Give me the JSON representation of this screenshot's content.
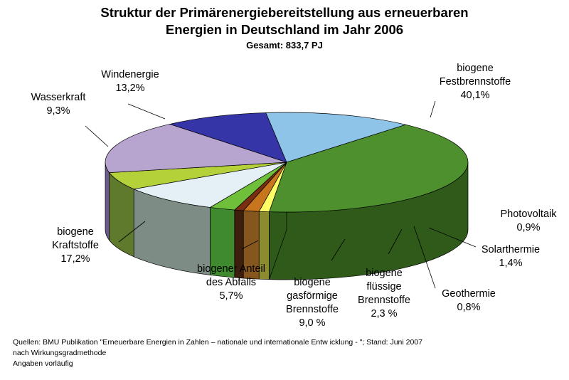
{
  "chart_data": {
    "type": "pie",
    "title": [
      "Struktur der Primärenergiebereitstellung aus erneuerbaren",
      "Energien in Deutschland im Jahr 2006"
    ],
    "subtitle": "Gesamt: 833,7 PJ",
    "unit": "%",
    "slices": [
      {
        "label": [
          "biogene",
          "Festbrennstoffe"
        ],
        "value_text": "40,1%",
        "value": 40.1,
        "color": "#4E8F2E",
        "side_color": "#2F5A1A"
      },
      {
        "label": [
          "Photovoltaik"
        ],
        "value_text": "0,9%",
        "value": 0.9,
        "color": "#FFFF66",
        "side_color": "#8C8C2E"
      },
      {
        "label": [
          "Solarthermie"
        ],
        "value_text": "1,4%",
        "value": 1.4,
        "color": "#C8761E",
        "side_color": "#86561F"
      },
      {
        "label": [
          "Geothermie"
        ],
        "value_text": "0,8%",
        "value": 0.8,
        "color": "#7A2E10",
        "side_color": "#3E1E0C"
      },
      {
        "label": [
          "biogene",
          "flüssige",
          "Brennstoffe"
        ],
        "value_text": "2,3 %",
        "value": 2.3,
        "color": "#6FBF3A",
        "side_color": "#3F8A2E"
      },
      {
        "label": [
          "biogene",
          "gasförmige",
          "Brennstoffe"
        ],
        "value_text": "9,0 %",
        "value": 9.0,
        "color": "#E4F0F6",
        "side_color": "#7D8C84"
      },
      {
        "label": [
          "biogener Anteil",
          "des Abfalls"
        ],
        "value_text": "5,7%",
        "value": 5.7,
        "color": "#B5D13A",
        "side_color": "#5F7A2C"
      },
      {
        "label": [
          "biogene",
          "Kraftstoffe"
        ],
        "value_text": "17,2%",
        "value": 17.2,
        "color": "#B7A4CF",
        "side_color": "#6A5A8E"
      },
      {
        "label": [
          "Wasserkraft"
        ],
        "value_text": "9,3%",
        "value": 9.3,
        "color": "#3535A8",
        "side_color": "#1F1F70"
      },
      {
        "label": [
          "Windenergie"
        ],
        "value_text": "13,2%",
        "value": 13.2,
        "color": "#8EC4E8",
        "side_color": "#5A88A8"
      }
    ]
  },
  "footer": {
    "source": "Quellen: BMU Publikation \"Erneuerbare Energien in Zahlen – nationale und internationale Entw icklung - \"; Stand: Juni 2007",
    "method": "nach Wirkungsgradmethode",
    "note": "Angaben vorläufig"
  }
}
